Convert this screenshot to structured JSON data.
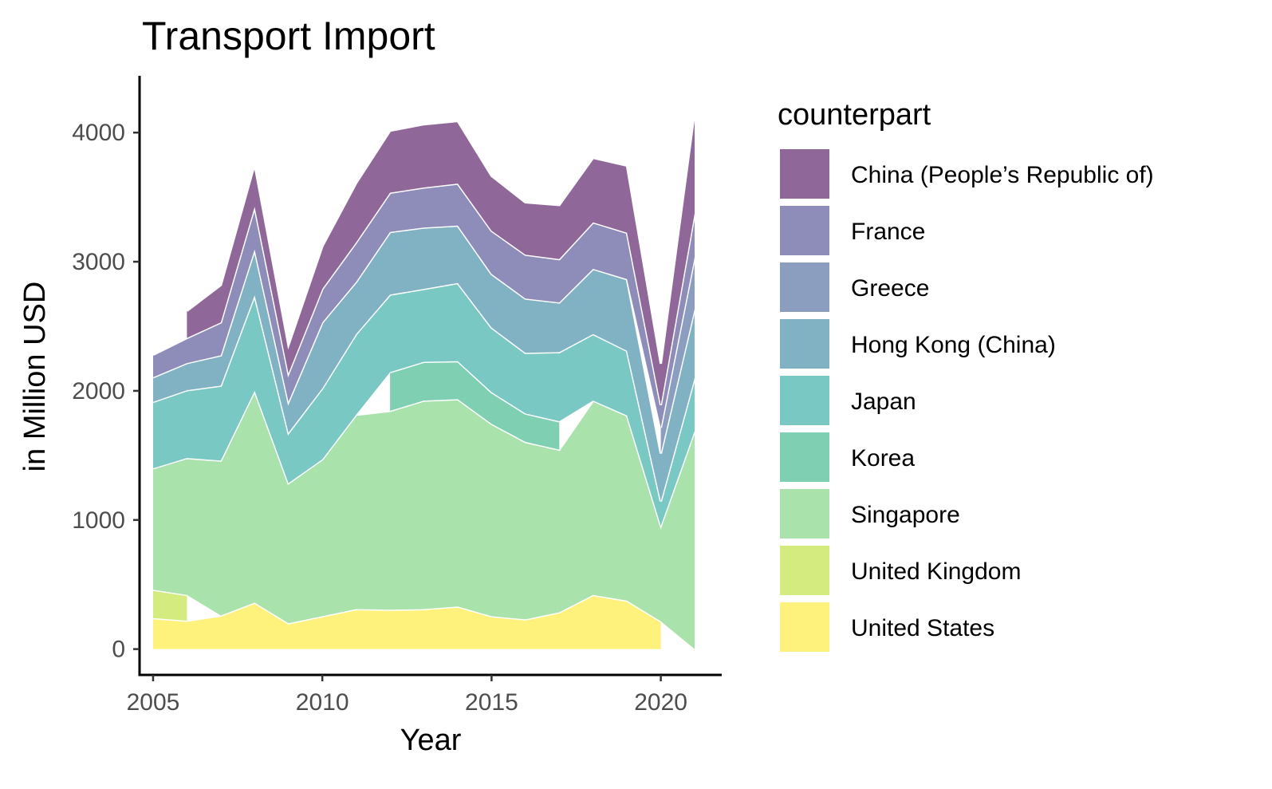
{
  "chart_data": {
    "type": "area",
    "stacked": true,
    "title": "Transport Import",
    "xlabel": "Year",
    "ylabel": "in Million USD",
    "xlim": [
      2004.6,
      2021.8
    ],
    "ylim": [
      -200,
      4440
    ],
    "x_ticks": [
      2005,
      2010,
      2015,
      2020
    ],
    "y_ticks": [
      0,
      1000,
      2000,
      3000,
      4000
    ],
    "grid": false,
    "legend": {
      "title": "counterpart",
      "position": "right"
    },
    "x": [
      2005,
      2006,
      2007,
      2008,
      2009,
      2010,
      2011,
      2012,
      2013,
      2014,
      2015,
      2016,
      2017,
      2018,
      2019,
      2020,
      2021
    ],
    "series": [
      {
        "name": "United States",
        "color": "#FDE725",
        "values": [
          240,
          220,
          260,
          360,
          200,
          255,
          310,
          305,
          310,
          330,
          255,
          230,
          285,
          420,
          375,
          215,
          null
        ]
      },
      {
        "name": "United Kingdom",
        "color": "#B8DE29",
        "values": [
          220,
          200,
          null,
          null,
          null,
          null,
          null,
          null,
          null,
          null,
          null,
          null,
          null,
          null,
          null,
          null,
          null
        ]
      },
      {
        "name": "Singapore",
        "color": "#6FCF73",
        "values": [
          940,
          1060,
          1200,
          1640,
          1085,
          1215,
          1505,
          1540,
          1615,
          1605,
          1490,
          1375,
          1260,
          1505,
          1435,
          740,
          1690
        ]
      },
      {
        "name": "Korea",
        "color": "#29AF7F",
        "values": [
          null,
          null,
          null,
          null,
          null,
          null,
          null,
          300,
          300,
          295,
          245,
          220,
          220,
          null,
          null,
          null,
          null
        ]
      },
      {
        "name": "Japan",
        "color": "#20A39C",
        "values": [
          515,
          525,
          580,
          740,
          390,
          550,
          625,
          600,
          565,
          605,
          500,
          470,
          535,
          515,
          500,
          190,
          410
        ]
      },
      {
        "name": "Hong Kong (China)",
        "color": "#2D7F9D",
        "values": [
          190,
          210,
          235,
          355,
          240,
          510,
          405,
          485,
          475,
          445,
          415,
          420,
          385,
          505,
          555,
          370,
          535
        ]
      },
      {
        "name": "Greece",
        "color": "#3E5D94",
        "values": [
          null,
          null,
          null,
          null,
          null,
          null,
          null,
          null,
          null,
          null,
          null,
          null,
          null,
          null,
          null,
          200,
          400
        ]
      },
      {
        "name": "France",
        "color": "#42418C",
        "values": [
          175,
          195,
          255,
          330,
          220,
          260,
          305,
          305,
          310,
          325,
          335,
          340,
          335,
          360,
          360,
          175,
          340
        ]
      },
      {
        "name": "China (People’s Republic of)",
        "color": "#440154",
        "values": [
          null,
          210,
          290,
          330,
          220,
          330,
          460,
          480,
          490,
          485,
          425,
          405,
          420,
          500,
          520,
          320,
          790
        ]
      }
    ]
  }
}
